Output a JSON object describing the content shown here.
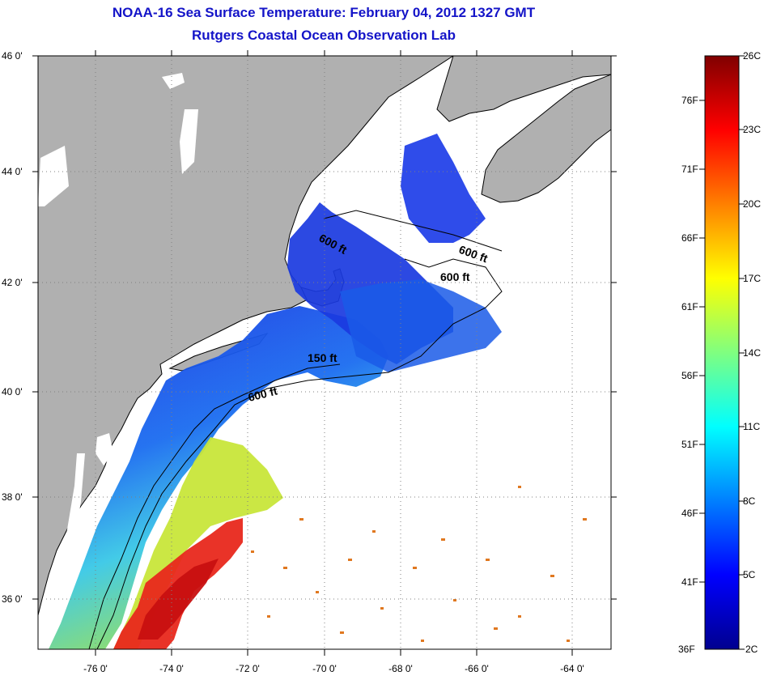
{
  "title": {
    "line1": "NOAA-16 Sea Surface Temperature:  February 04, 2012 1327 GMT",
    "line2": "Rutgers Coastal Ocean Observation Lab"
  },
  "map": {
    "lat_labels": [
      "46 0'",
      "44 0'",
      "42 0'",
      "40 0'",
      "38 0'",
      "36 0'"
    ],
    "lon_labels": [
      "-76 0'",
      "-74 0'",
      "-72 0'",
      "-70 0'",
      "-68 0'",
      "-66 0'",
      "-64 0'"
    ],
    "isobath_labels": [
      "600 ft",
      "600 ft",
      "600 ft",
      "150 ft",
      "600 ft"
    ],
    "colors": {
      "land": "#b0b0b0",
      "ocean": "#ffffff",
      "coast": "#000000",
      "grid": "#808080"
    }
  },
  "colorbar": {
    "celsius_labels": [
      "26C",
      "23C",
      "20C",
      "17C",
      "14C",
      "11C",
      "8C",
      "5C",
      "2C"
    ],
    "fahrenheit_labels": [
      "76F",
      "71F",
      "66F",
      "61F",
      "56F",
      "51F",
      "46F",
      "41F",
      "36F"
    ]
  }
}
